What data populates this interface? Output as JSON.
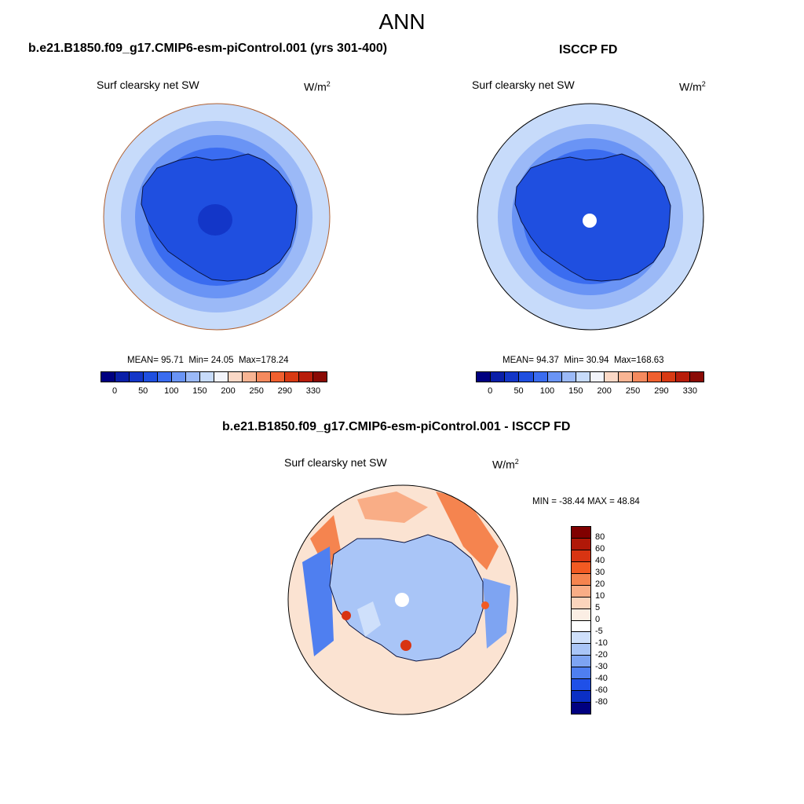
{
  "main_title": "ANN",
  "panels": [
    {
      "title": "b.e21.B1850.f09_g17.CMIP6-esm-piControl.001 (yrs 301-400)",
      "variable": "Surf clearsky net SW",
      "units_base": "W/m",
      "units_exp": "2",
      "mean_label": "MEAN=",
      "mean": "95.71",
      "min_label": "Min=",
      "min": "24.05",
      "max_label": "Max=",
      "max": "178.24"
    },
    {
      "title": "ISCCP FD",
      "variable": "Surf clearsky net SW",
      "units_base": "W/m",
      "units_exp": "2",
      "mean_label": "MEAN=",
      "mean": "94.37",
      "min_label": "Min=",
      "min": "30.94",
      "max_label": "Max=",
      "max": "168.63"
    }
  ],
  "diff_panel": {
    "title": "b.e21.B1850.f09_g17.CMIP6-esm-piControl.001 - ISCCP FD",
    "variable": "Surf clearsky net SW",
    "units_base": "W/m",
    "units_exp": "2",
    "minmax_text": "MIN = -38.44 MAX =  48.84"
  },
  "colorbar_abs": {
    "tick_labels": [
      "0",
      "50",
      "100",
      "150",
      "200",
      "250",
      "290",
      "330"
    ],
    "colors": [
      "#000080",
      "#0a1fa8",
      "#1336c8",
      "#1f4fe0",
      "#3a6cf0",
      "#6a94f5",
      "#9bb9f7",
      "#c7dbfa",
      "#f2f4fb",
      "#fbd8c6",
      "#f8b493",
      "#f58a5e",
      "#f0602f",
      "#d83a13",
      "#b81d0a",
      "#8a0a05"
    ]
  },
  "colorbar_diff": {
    "tick_labels": [
      "80",
      "60",
      "40",
      "30",
      "20",
      "10",
      "5",
      "0",
      "-5",
      "-10",
      "-20",
      "-30",
      "-40",
      "-60",
      "-80"
    ],
    "colors": [
      "#800000",
      "#b01808",
      "#d83412",
      "#f25a22",
      "#f5844f",
      "#f9ad86",
      "#fbd4bc",
      "#fbeee4",
      "#ffffff",
      "#cfe0fb",
      "#a9c5f7",
      "#7ea4f2",
      "#4f7ff0",
      "#1f50e8",
      "#0b2fc4",
      "#000080"
    ]
  }
}
